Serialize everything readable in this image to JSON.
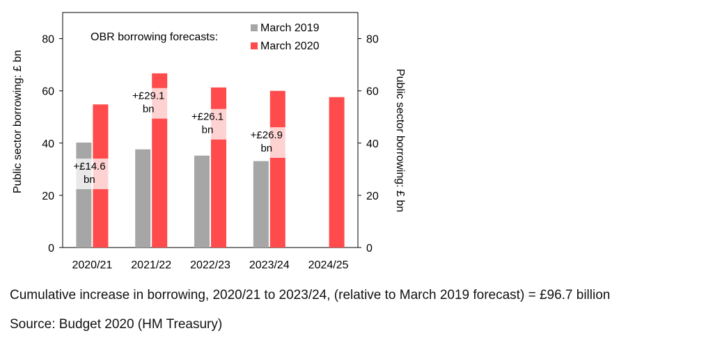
{
  "chart_data": {
    "type": "bar",
    "categories": [
      "2020/21",
      "2021/22",
      "2022/23",
      "2023/24",
      "2024/25"
    ],
    "series": [
      {
        "name": "March 2019",
        "color": "#a6a6a6",
        "values": [
          40.2,
          37.6,
          35.2,
          33.1,
          null
        ]
      },
      {
        "name": "March 2020",
        "color": "#ff4b4b",
        "values": [
          54.8,
          66.7,
          61.3,
          60.0,
          57.6
        ]
      }
    ],
    "ylim": [
      0,
      90
    ],
    "yticks": [
      0,
      20,
      40,
      60,
      80
    ],
    "ylabel_left": "Public sector borrowing:  £ bn",
    "ylabel_right": "Public sector borrowing:  £ bn",
    "legend_title": "OBR borrowing forecasts:",
    "legend_position": "top-right",
    "grid": false,
    "annotations": [
      {
        "category": "2020/21",
        "lines": [
          "+£14.6",
          "bn"
        ],
        "y": 33
      },
      {
        "category": "2021/22",
        "lines": [
          "+£29.1",
          "bn"
        ],
        "y": 60
      },
      {
        "category": "2022/23",
        "lines": [
          "+£26.1",
          "bn"
        ],
        "y": 52
      },
      {
        "category": "2023/24",
        "lines": [
          "+£26.9",
          "bn"
        ],
        "y": 45
      }
    ]
  },
  "notes": {
    "cumulative": "Cumulative increase in borrowing, 2020/21 to 2023/24, (relative to March 2019 forecast) = £96.7 billion",
    "source": "Source:  Budget 2020 (HM Treasury)"
  }
}
